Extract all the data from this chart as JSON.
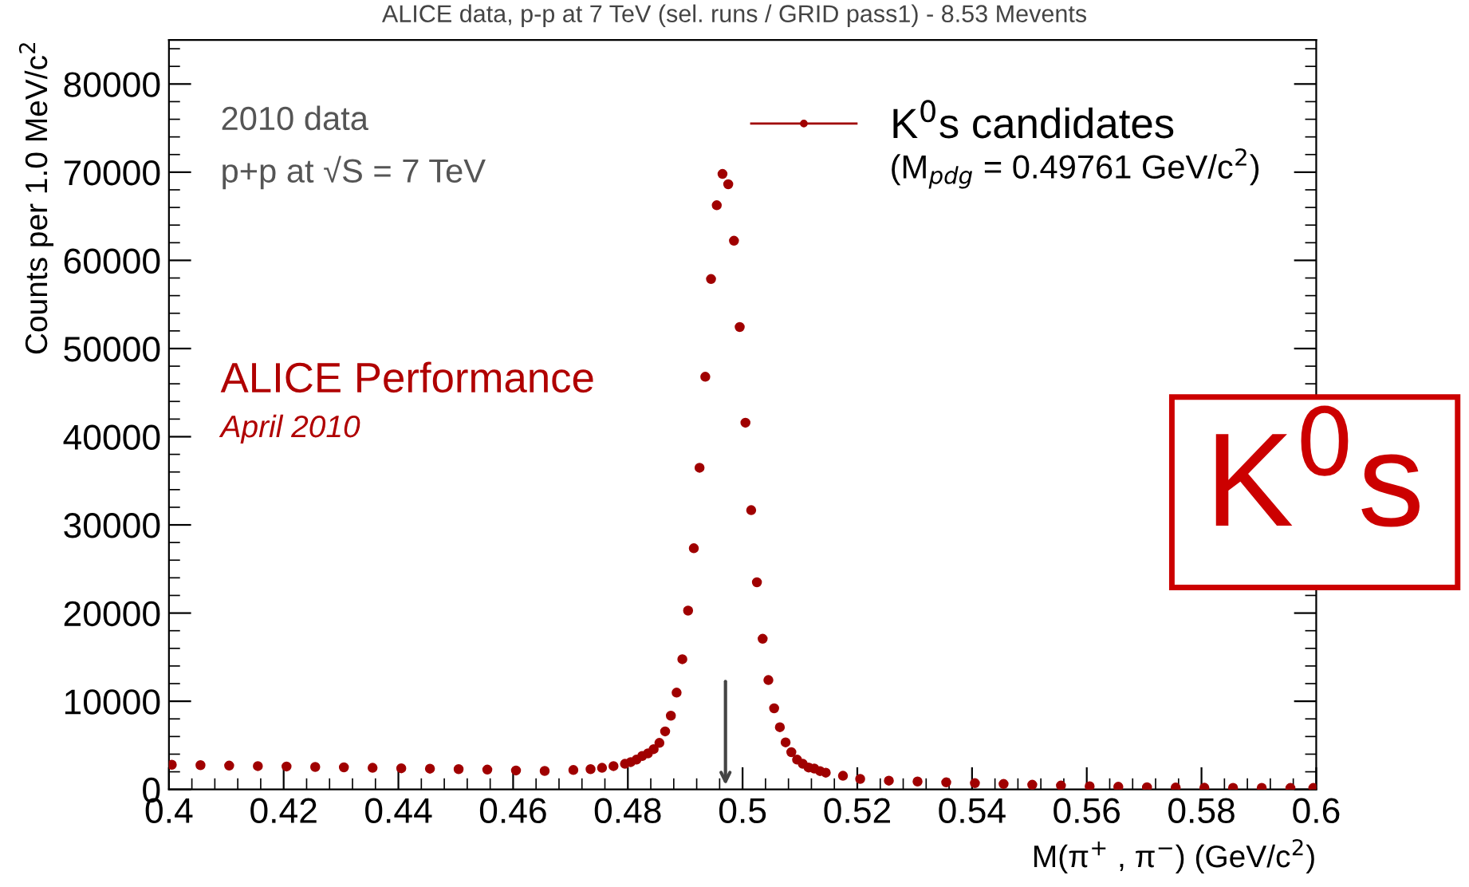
{
  "chart_data": {
    "type": "scatter",
    "title": "ALICE data, p-p at 7 TeV (sel. runs / GRID pass1) - 8.53 Mevents",
    "xlabel": "M(π$^{+}$ , π$^{−}$) (GeV/c$^{2}$)",
    "ylabel": "Counts per 1.0 MeV/c$^{2}$",
    "series": [
      {
        "name": "K$^{0}$s candidates",
        "color": "#a00000",
        "x": [
          0.4005,
          0.4055,
          0.4105,
          0.4155,
          0.4205,
          0.4255,
          0.4305,
          0.4355,
          0.4405,
          0.4455,
          0.4505,
          0.4555,
          0.4605,
          0.4655,
          0.4705,
          0.4735,
          0.4755,
          0.4775,
          0.4795,
          0.4805,
          0.4815,
          0.4825,
          0.4835,
          0.4845,
          0.4855,
          0.4865,
          0.4875,
          0.4885,
          0.4895,
          0.4905,
          0.4915,
          0.4925,
          0.4935,
          0.4945,
          0.4955,
          0.4965,
          0.4975,
          0.4985,
          0.4995,
          0.5005,
          0.5015,
          0.5025,
          0.5035,
          0.5045,
          0.5055,
          0.5065,
          0.5075,
          0.5085,
          0.5095,
          0.5105,
          0.5115,
          0.5125,
          0.5135,
          0.5145,
          0.5175,
          0.5205,
          0.5255,
          0.5305,
          0.5355,
          0.5405,
          0.5455,
          0.5505,
          0.5555,
          0.5605,
          0.5655,
          0.5705,
          0.5755,
          0.5805,
          0.5855,
          0.5905,
          0.5955,
          0.5995
        ],
        "values": [
          2800,
          2750,
          2700,
          2650,
          2600,
          2550,
          2500,
          2450,
          2400,
          2350,
          2300,
          2250,
          2150,
          2100,
          2200,
          2300,
          2450,
          2650,
          2900,
          3100,
          3380,
          3790,
          4090,
          4570,
          5280,
          6580,
          8360,
          10980,
          14770,
          20280,
          27350,
          36480,
          46800,
          57880,
          66250,
          69800,
          68630,
          62220,
          52440,
          41590,
          31670,
          23490,
          17080,
          12400,
          9200,
          7060,
          5340,
          4220,
          3380,
          2900,
          2490,
          2370,
          2080,
          1900,
          1550,
          1190,
          1000,
          900,
          800,
          710,
          620,
          530,
          440,
          360,
          300,
          250,
          210,
          190,
          180,
          180,
          170,
          170
        ]
      }
    ],
    "xlim": [
      0.4,
      0.6
    ],
    "xticks": [
      0.4,
      0.42,
      0.44,
      0.46,
      0.48,
      0.5,
      0.52,
      0.54,
      0.56,
      0.58,
      0.6
    ],
    "ylim": [
      0,
      85000
    ],
    "yticks": [
      0,
      10000,
      20000,
      30000,
      40000,
      50000,
      60000,
      70000,
      80000
    ],
    "marker": "circle",
    "grid": false,
    "legend": "top right",
    "annotations": [
      "2010 data",
      "p+p at √S = 7 TeV",
      "ALICE Performance",
      "April 2010",
      "(M$_{pdg}$ = 0.49761 GeV/c$^{2}$)",
      "K$^{0}$s"
    ]
  }
}
